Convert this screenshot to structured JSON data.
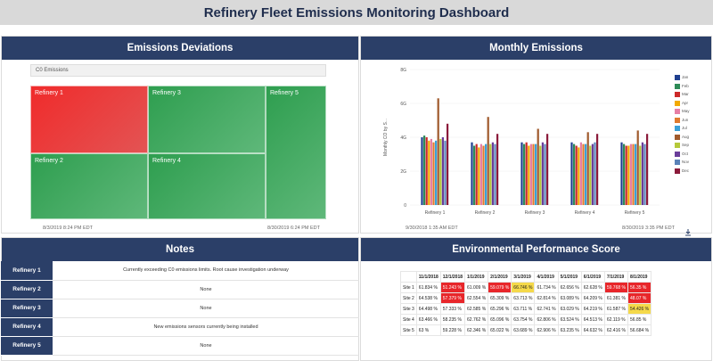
{
  "dashboard": {
    "title": "Refinery Fleet Emissions Monitoring Dashboard"
  },
  "deviations": {
    "header": "Emissions Deviations",
    "selector": "C0 Emissions",
    "tiles": [
      {
        "name": "Refinery 1",
        "status_color": "#ee2f2f"
      },
      {
        "name": "Refinery 3",
        "status_color": "#3aa65a"
      },
      {
        "name": "Refinery 5",
        "status_color": "#3aa65a"
      },
      {
        "name": "Refinery 2",
        "status_color": "#3aa65a"
      },
      {
        "name": "Refinery 4",
        "status_color": "#3aa65a"
      }
    ],
    "footer_left": "8/3/2019 8:24 PM  EDT",
    "footer_right": "8/30/2019 6:24 PM  EDT"
  },
  "monthly": {
    "header": "Monthly Emissions",
    "footer_left": "9/30/2018 1:35 AM  EDT",
    "footer_right": "8/30/2019 3:35 PM  EDT",
    "icon": "download-icon"
  },
  "chart_data": {
    "type": "bar",
    "ylabel": "Monthly CO by S...",
    "ylim": [
      0,
      8
    ],
    "yticks": [
      "0",
      "2G",
      "4G",
      "6G",
      "8G"
    ],
    "categories": [
      "Refinery 1",
      "Refinery 2",
      "Refinery 3",
      "Refinery 4",
      "Refinery 5"
    ],
    "series": [
      {
        "name": "Jan",
        "color": "#1f3f8f",
        "values": [
          4.0,
          3.7,
          3.7,
          3.7,
          3.7
        ]
      },
      {
        "name": "Feb",
        "color": "#2e8b57",
        "values": [
          4.1,
          3.5,
          3.6,
          3.6,
          3.6
        ]
      },
      {
        "name": "Mar",
        "color": "#cc2a2a",
        "values": [
          4.0,
          3.6,
          3.7,
          3.5,
          3.5
        ]
      },
      {
        "name": "Apr",
        "color": "#f2a900",
        "values": [
          3.8,
          3.4,
          3.5,
          3.4,
          3.5
        ]
      },
      {
        "name": "May",
        "color": "#e67ea5",
        "values": [
          3.9,
          3.6,
          3.6,
          3.7,
          3.6
        ]
      },
      {
        "name": "Jun",
        "color": "#e07a2e",
        "values": [
          3.7,
          3.5,
          3.6,
          3.6,
          3.6
        ]
      },
      {
        "name": "Jul",
        "color": "#3aa0d8",
        "values": [
          3.8,
          3.6,
          3.6,
          3.6,
          3.6
        ]
      },
      {
        "name": "Aug",
        "color": "#a05a2c",
        "values": [
          6.3,
          5.2,
          4.5,
          4.3,
          4.4
        ]
      },
      {
        "name": "Sep",
        "color": "#b5c93a",
        "values": [
          3.9,
          3.6,
          3.5,
          3.5,
          3.5
        ]
      },
      {
        "name": "Oct",
        "color": "#6a3d9a",
        "values": [
          4.0,
          3.7,
          3.7,
          3.6,
          3.7
        ]
      },
      {
        "name": "Nov",
        "color": "#5a82b8",
        "values": [
          3.8,
          3.6,
          3.6,
          3.7,
          3.6
        ]
      },
      {
        "name": "Dec",
        "color": "#8b1a3a",
        "values": [
          4.8,
          4.2,
          4.2,
          4.2,
          4.2
        ]
      }
    ]
  },
  "notes": {
    "header": "Notes",
    "rows": [
      {
        "name": "Refinery 1",
        "note": "Currently exceeding C0 emissions limits.  Root cause investigation underway"
      },
      {
        "name": "Refinery 2",
        "note": "None"
      },
      {
        "name": "Refinery 3",
        "note": "None"
      },
      {
        "name": "Refinery 4",
        "note": "New emissions sensors currently being installed"
      },
      {
        "name": "Refinery 5",
        "note": "None"
      }
    ]
  },
  "performance": {
    "header": "Environmental Performance Score",
    "columns": [
      "",
      "11/1/2018",
      "12/1/2018",
      "1/1/2019",
      "2/1/2019",
      "3/1/2019",
      "4/1/2019",
      "5/1/2019",
      "6/1/2019",
      "7/1/2019",
      "8/1/2019"
    ],
    "rows": [
      {
        "site": "Site 1",
        "cells": [
          {
            "v": "61.834 %",
            "c": ""
          },
          {
            "v": "51.243 %",
            "c": "#e8262a"
          },
          {
            "v": "61.009 %",
            "c": ""
          },
          {
            "v": "59.079 %",
            "c": "#e8262a"
          },
          {
            "v": "66.746 %",
            "c": "#f5d94a"
          },
          {
            "v": "61.734 %",
            "c": ""
          },
          {
            "v": "62.656 %",
            "c": ""
          },
          {
            "v": "62.628 %",
            "c": ""
          },
          {
            "v": "59.768 %",
            "c": "#e8262a"
          },
          {
            "v": "56.35 %",
            "c": "#e8262a"
          }
        ]
      },
      {
        "site": "Site 2",
        "cells": [
          {
            "v": "64.538 %",
            "c": ""
          },
          {
            "v": "57.379 %",
            "c": "#e8262a"
          },
          {
            "v": "62.554 %",
            "c": ""
          },
          {
            "v": "65.309 %",
            "c": ""
          },
          {
            "v": "63.713 %",
            "c": ""
          },
          {
            "v": "62.814 %",
            "c": ""
          },
          {
            "v": "63.089 %",
            "c": ""
          },
          {
            "v": "64.209 %",
            "c": ""
          },
          {
            "v": "61.381 %",
            "c": ""
          },
          {
            "v": "48.07 %",
            "c": "#e8262a"
          }
        ]
      },
      {
        "site": "Site 3",
        "cells": [
          {
            "v": "64.498 %",
            "c": ""
          },
          {
            "v": "57.333 %",
            "c": ""
          },
          {
            "v": "62.585 %",
            "c": ""
          },
          {
            "v": "65.296 %",
            "c": ""
          },
          {
            "v": "63.711 %",
            "c": ""
          },
          {
            "v": "62.741 %",
            "c": ""
          },
          {
            "v": "63.029 %",
            "c": ""
          },
          {
            "v": "64.219 %",
            "c": ""
          },
          {
            "v": "61.587 %",
            "c": ""
          },
          {
            "v": "54.426 %",
            "c": "#f5d94a"
          }
        ]
      },
      {
        "site": "Site 4",
        "cells": [
          {
            "v": "63.466 %",
            "c": ""
          },
          {
            "v": "58.235 %",
            "c": ""
          },
          {
            "v": "62.762 %",
            "c": ""
          },
          {
            "v": "65.096 %",
            "c": ""
          },
          {
            "v": "63.754 %",
            "c": ""
          },
          {
            "v": "62.806 %",
            "c": ""
          },
          {
            "v": "63.524 %",
            "c": ""
          },
          {
            "v": "64.513 %",
            "c": ""
          },
          {
            "v": "62.119 %",
            "c": ""
          },
          {
            "v": "56.85 %",
            "c": ""
          }
        ]
      },
      {
        "site": "Site 5",
        "cells": [
          {
            "v": "63 %",
            "c": ""
          },
          {
            "v": "59.228 %",
            "c": ""
          },
          {
            "v": "62.346 %",
            "c": ""
          },
          {
            "v": "65.022 %",
            "c": ""
          },
          {
            "v": "63.689 %",
            "c": ""
          },
          {
            "v": "62.906 %",
            "c": ""
          },
          {
            "v": "63.235 %",
            "c": ""
          },
          {
            "v": "64.632 %",
            "c": ""
          },
          {
            "v": "62.416 %",
            "c": ""
          },
          {
            "v": "56.684 %",
            "c": ""
          }
        ]
      }
    ]
  }
}
